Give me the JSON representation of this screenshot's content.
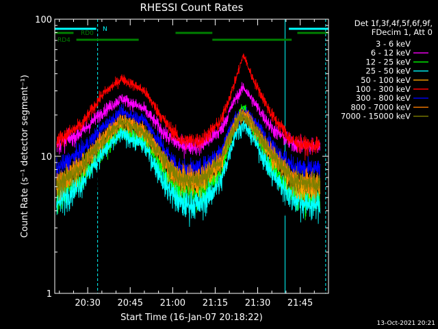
{
  "chart_data": {
    "type": "line",
    "title": "RHESSI Count Rates",
    "xlabel": "Start Time (16-Jan-07 20:18:22)",
    "ylabel": "Count Rate (s⁻¹ detector segment⁻¹)",
    "ylog": true,
    "ylim": [
      1,
      100
    ],
    "xlim": [
      "20:18:22",
      "21:55:00"
    ],
    "y_ticks": [
      "1",
      "10",
      "100"
    ],
    "x_ticks": [
      "20:30",
      "20:45",
      "21:00",
      "21:15",
      "21:30",
      "21:45"
    ],
    "legend": {
      "placement": "right",
      "header_line1": "Det 1f,3f,4f,5f,6f,9f,",
      "header_line2": "FDecim 1, Att 0"
    },
    "series": [
      {
        "name": "3 - 6 keV",
        "color": "#000000",
        "x": [
          "20:19",
          "20:28",
          "20:35",
          "20:42",
          "20:50",
          "20:58",
          "21:03",
          "21:10",
          "21:17",
          "21:22",
          "21:25",
          "21:28",
          "21:35",
          "21:42",
          "21:47",
          "21:52"
        ],
        "y": [
          3.5,
          4.8,
          8.5,
          11.5,
          9.0,
          4.0,
          3.2,
          3.2,
          5.0,
          12.0,
          17.0,
          12.0,
          5.5,
          3.5,
          3.5,
          3.6
        ]
      },
      {
        "name": "6 - 12 keV",
        "color": "#ff00ff",
        "x": [
          "20:19",
          "20:28",
          "20:35",
          "20:42",
          "20:50",
          "20:58",
          "21:03",
          "21:10",
          "21:17",
          "21:22",
          "21:25",
          "21:28",
          "21:35",
          "21:42",
          "21:47",
          "21:52"
        ],
        "y": [
          12.0,
          15.0,
          21.0,
          26.5,
          22.0,
          14.0,
          12.0,
          12.0,
          15.5,
          26.0,
          32.0,
          26.0,
          16.0,
          12.5,
          11.8,
          12.0
        ]
      },
      {
        "name": "12 - 25 keV",
        "color": "#00ff00",
        "x": [
          "20:19",
          "20:28",
          "20:35",
          "20:42",
          "20:50",
          "20:58",
          "21:03",
          "21:10",
          "21:17",
          "21:22",
          "21:25",
          "21:28",
          "21:35",
          "21:42",
          "21:47",
          "21:52"
        ],
        "y": [
          5.0,
          7.0,
          11.0,
          15.5,
          13.0,
          7.0,
          5.5,
          5.5,
          7.5,
          17.0,
          24.0,
          16.0,
          8.5,
          5.5,
          5.0,
          5.2
        ]
      },
      {
        "name": "25 - 50 keV",
        "color": "#00ffff",
        "x": [
          "20:19",
          "20:28",
          "20:35",
          "20:42",
          "20:50",
          "20:58",
          "21:03",
          "21:10",
          "21:17",
          "21:22",
          "21:25",
          "21:28",
          "21:35",
          "21:42",
          "21:47",
          "21:52"
        ],
        "y": [
          4.5,
          6.5,
          10.5,
          14.5,
          12.0,
          6.0,
          4.5,
          4.5,
          6.5,
          14.5,
          17.0,
          14.0,
          7.5,
          5.0,
          4.5,
          4.5
        ]
      },
      {
        "name": "50 - 100 keV",
        "color": "#ffa500",
        "x": [
          "20:19",
          "20:28",
          "20:35",
          "20:42",
          "20:50",
          "20:58",
          "21:03",
          "21:10",
          "21:17",
          "21:22",
          "21:25",
          "21:28",
          "21:35",
          "21:42",
          "21:47",
          "21:52"
        ],
        "y": [
          6.0,
          8.5,
          13.0,
          18.0,
          15.0,
          8.5,
          6.5,
          6.5,
          9.0,
          17.5,
          20.0,
          17.0,
          10.0,
          6.5,
          6.0,
          6.0
        ]
      },
      {
        "name": "100 - 300 keV",
        "color": "#ff0000",
        "x": [
          "20:19",
          "20:28",
          "20:35",
          "20:42",
          "20:50",
          "20:58",
          "21:03",
          "21:10",
          "21:17",
          "21:22",
          "21:25",
          "21:28",
          "21:35",
          "21:42",
          "21:47",
          "21:52"
        ],
        "y": [
          13.0,
          17.0,
          28.0,
          37.0,
          30.0,
          17.0,
          13.0,
          13.0,
          18.0,
          35.0,
          55.0,
          38.0,
          20.0,
          13.0,
          12.0,
          12.0
        ]
      },
      {
        "name": "300 - 800 keV",
        "color": "#0000ff",
        "x": [
          "20:19",
          "20:28",
          "20:35",
          "20:42",
          "20:50",
          "20:58",
          "21:03",
          "21:10",
          "21:17",
          "21:22",
          "21:25",
          "21:28",
          "21:35",
          "21:42",
          "21:47",
          "21:52"
        ],
        "y": [
          8.0,
          11.0,
          16.0,
          21.0,
          18.5,
          10.5,
          8.0,
          8.0,
          11.0,
          19.0,
          21.0,
          19.0,
          12.0,
          8.5,
          8.0,
          8.0
        ]
      },
      {
        "name": "800 - 7000 keV",
        "color": "#ff7f00",
        "x": [
          "20:19",
          "20:28",
          "20:35",
          "20:42",
          "20:50",
          "20:58",
          "21:03",
          "21:10",
          "21:17",
          "21:22",
          "21:25",
          "21:28",
          "21:35",
          "21:42",
          "21:47",
          "21:52"
        ],
        "y": [
          6.2,
          8.8,
          13.5,
          18.5,
          15.5,
          9.0,
          7.0,
          7.0,
          9.5,
          18.0,
          21.0,
          17.5,
          10.5,
          7.0,
          6.5,
          6.5
        ]
      },
      {
        "name": "7000 - 15000 keV",
        "color": "#808000",
        "x": [
          "20:19",
          "20:28",
          "20:35",
          "20:42",
          "20:50",
          "20:58",
          "21:03",
          "21:10",
          "21:17",
          "21:22",
          "21:25",
          "21:28",
          "21:35",
          "21:42",
          "21:47",
          "21:52"
        ],
        "y": [
          6.0,
          8.5,
          13.0,
          18.0,
          15.0,
          8.8,
          6.8,
          6.8,
          9.2,
          17.5,
          20.0,
          17.0,
          10.2,
          6.8,
          6.3,
          6.3
        ]
      }
    ],
    "state_bars": [
      {
        "label": "N",
        "color": "#00ffff",
        "segments": [
          [
            "20:18:22",
            "20:33"
          ],
          [
            "21:41",
            "21:55"
          ]
        ]
      },
      {
        "label": "RD0",
        "color": "#008000",
        "segments": [
          [
            "20:18:22",
            "20:25"
          ],
          [
            "21:01",
            "21:14"
          ],
          [
            "21:44",
            "21:55"
          ]
        ]
      },
      {
        "label": "RD4",
        "color": "#008000",
        "segments": [
          [
            "20:26",
            "20:48"
          ],
          [
            "21:14",
            "21:42"
          ]
        ]
      }
    ],
    "vlines": [
      {
        "x": "20:18:22",
        "style": "solid",
        "color": "#00ffff"
      },
      {
        "x": "20:33:30",
        "style": "dashed",
        "color": "#00ffff"
      },
      {
        "x": "21:39:40",
        "style": "solid",
        "color": "#00ffff"
      },
      {
        "x": "21:54:00",
        "style": "dashed",
        "color": "#00ffff"
      }
    ],
    "footer_timestamp": "13-Oct-2021 20:21"
  }
}
